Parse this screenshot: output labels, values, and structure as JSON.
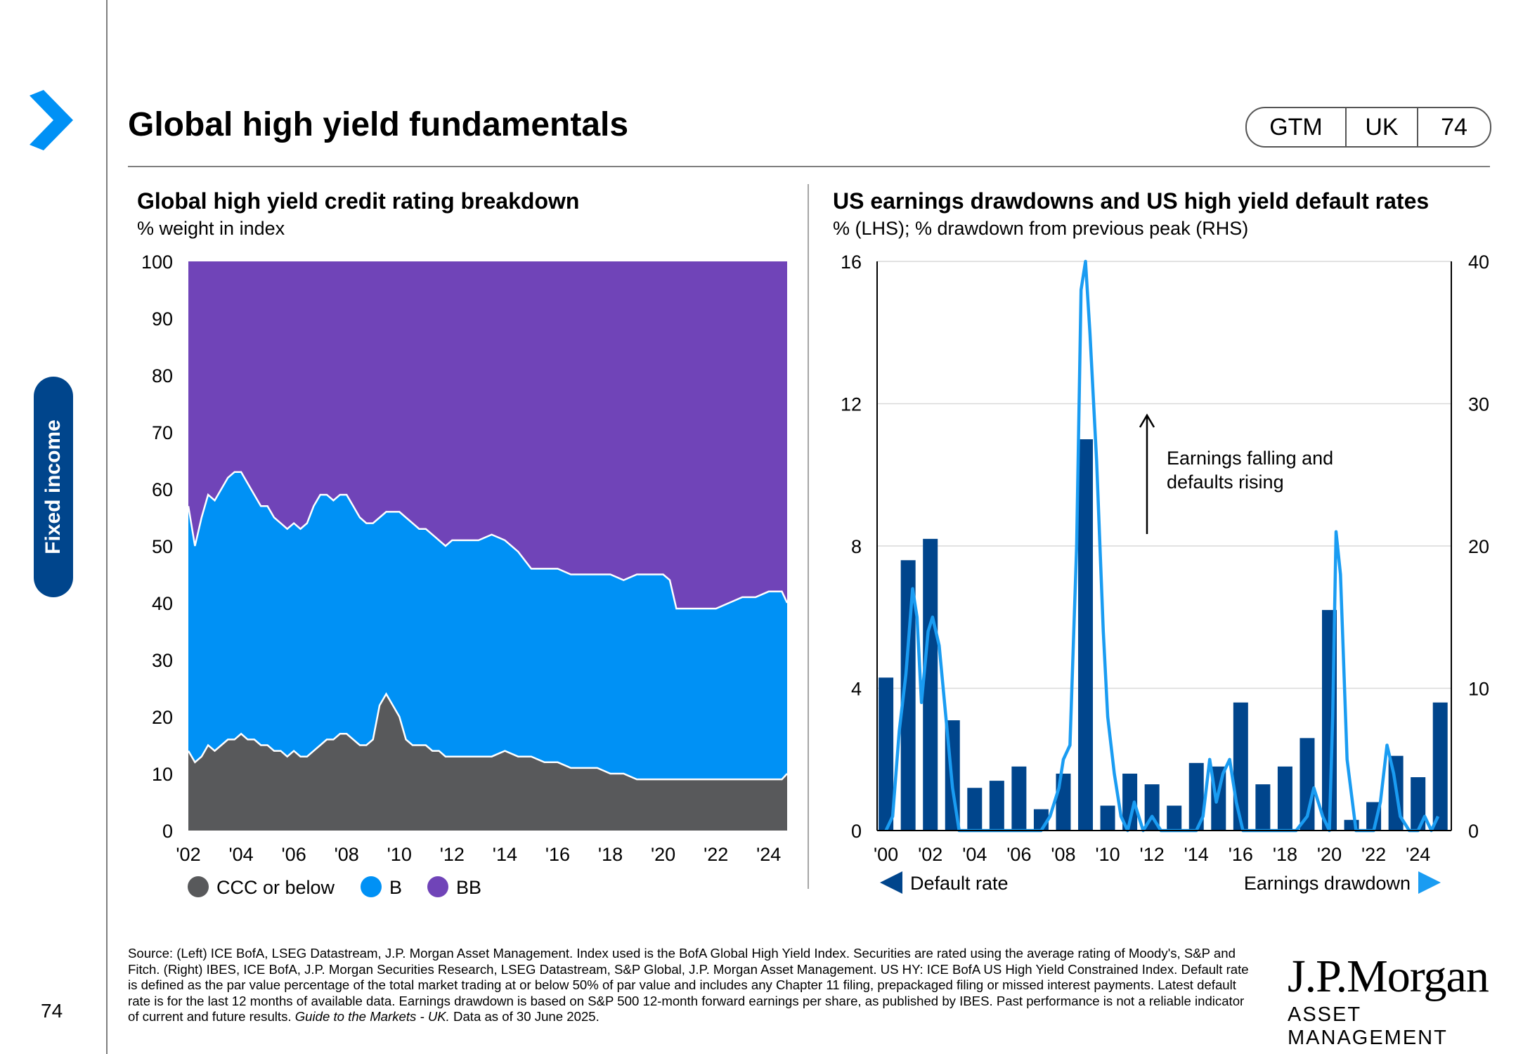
{
  "page": {
    "title": "Global high yield fundamentals",
    "badge": [
      "GTM",
      "UK",
      "74"
    ],
    "side_tab": "Fixed income",
    "page_number": "74",
    "footer": "Source: (Left) ICE BofA, LSEG Datastream, J.P. Morgan Asset Management. Index used is the BofA Global High Yield Index. Securities are rated using the average rating of Moody's, S&P and Fitch. (Right) IBES, ICE BofA, J.P. Morgan Securities Research, LSEG Datastream, S&P Global, J.P. Morgan Asset Management. US HY: ICE BofA US High Yield Constrained Index. Default rate is defined as the par value percentage of the total market trading at or below 50% of par value and includes any Chapter 11 filing, prepackaged filing or missed interest payments. Latest default rate is for the last 12 months of available data. Earnings drawdown is based on S&P 500 12-month forward earnings per share, as published by IBES. Past performance is not a reliable indicator of current and future results.",
    "footer_italic": "Guide to the Markets - UK.",
    "footer_end": "Data as of 30 June 2025.",
    "logo_line1": "J.P.Morgan",
    "logo_line2": "ASSET MANAGEMENT",
    "colors": {
      "navy": "#00458c",
      "ccc": "#58595b",
      "b": "#0091f5",
      "bb": "#7044b8",
      "bar": "#00458c",
      "line": "#1a9cf2"
    }
  },
  "chart_data": [
    {
      "type": "area",
      "title": "Global high yield credit rating breakdown",
      "subtitle": "% weight in index",
      "stacked": true,
      "x_ticks": [
        "'02",
        "'04",
        "'06",
        "'08",
        "'10",
        "'12",
        "'14",
        "'16",
        "'18",
        "'20",
        "'22",
        "'24"
      ],
      "ylim": [
        0,
        100
      ],
      "y_ticks": [
        0,
        10,
        20,
        30,
        40,
        50,
        60,
        70,
        80,
        90,
        100
      ],
      "x": [
        2002.0,
        2002.25,
        2002.5,
        2002.75,
        2003.0,
        2003.25,
        2003.5,
        2003.75,
        2004.0,
        2004.25,
        2004.5,
        2004.75,
        2005.0,
        2005.25,
        2005.5,
        2005.75,
        2006.0,
        2006.25,
        2006.5,
        2006.75,
        2007.0,
        2007.25,
        2007.5,
        2007.75,
        2008.0,
        2008.25,
        2008.5,
        2008.75,
        2009.0,
        2009.25,
        2009.5,
        2009.75,
        2010.0,
        2010.25,
        2010.5,
        2010.75,
        2011.0,
        2011.25,
        2011.5,
        2011.75,
        2012.0,
        2012.5,
        2013.0,
        2013.5,
        2014.0,
        2014.5,
        2015.0,
        2015.5,
        2016.0,
        2016.5,
        2017.0,
        2017.5,
        2018.0,
        2018.5,
        2019.0,
        2019.5,
        2020.0,
        2020.25,
        2020.5,
        2021.0,
        2021.5,
        2022.0,
        2022.5,
        2023.0,
        2023.5,
        2024.0,
        2024.5,
        2024.7
      ],
      "series": [
        {
          "name": "CCC or below",
          "values": [
            14,
            12,
            13,
            15,
            14,
            15,
            16,
            16,
            17,
            16,
            16,
            15,
            15,
            14,
            14,
            13,
            14,
            13,
            13,
            14,
            15,
            16,
            16,
            17,
            17,
            16,
            15,
            15,
            16,
            22,
            24,
            22,
            20,
            16,
            15,
            15,
            15,
            14,
            14,
            13,
            13,
            13,
            13,
            13,
            14,
            13,
            13,
            12,
            12,
            11,
            11,
            11,
            10,
            10,
            9,
            9,
            9,
            9,
            9,
            9,
            9,
            9,
            9,
            9,
            9,
            9,
            9,
            10
          ]
        },
        {
          "name": "B",
          "values": [
            43,
            38,
            42,
            44,
            44,
            45,
            46,
            47,
            46,
            45,
            43,
            42,
            42,
            41,
            40,
            40,
            40,
            40,
            41,
            43,
            44,
            43,
            42,
            42,
            42,
            41,
            40,
            39,
            38,
            33,
            32,
            34,
            36,
            39,
            39,
            38,
            38,
            38,
            37,
            37,
            38,
            38,
            38,
            39,
            37,
            36,
            33,
            34,
            34,
            34,
            34,
            34,
            35,
            34,
            36,
            36,
            36,
            35,
            30,
            30,
            30,
            30,
            31,
            32,
            32,
            33,
            33,
            30
          ]
        },
        {
          "name": "BB",
          "values": [
            43,
            50,
            45,
            41,
            42,
            40,
            38,
            37,
            37,
            39,
            41,
            43,
            43,
            45,
            46,
            47,
            46,
            47,
            46,
            43,
            41,
            41,
            42,
            41,
            41,
            43,
            45,
            46,
            46,
            45,
            44,
            44,
            44,
            45,
            46,
            47,
            47,
            48,
            49,
            50,
            49,
            49,
            49,
            48,
            49,
            51,
            54,
            54,
            54,
            55,
            55,
            55,
            55,
            56,
            55,
            55,
            55,
            56,
            61,
            61,
            61,
            61,
            60,
            59,
            59,
            58,
            58,
            60
          ]
        }
      ],
      "legend": [
        "CCC or below",
        "B",
        "BB"
      ]
    },
    {
      "type": "bar+line",
      "title": "US earnings drawdowns and US high yield default rates",
      "subtitle": "% (LHS); % drawdown from previous peak (RHS)",
      "x_ticks": [
        "'00",
        "'02",
        "'04",
        "'06",
        "'08",
        "'10",
        "'12",
        "'14",
        "'16",
        "'18",
        "'20",
        "'22",
        "'24"
      ],
      "ylim_left": [
        0,
        16
      ],
      "y_ticks_left": [
        0,
        4,
        8,
        12,
        16
      ],
      "ylim_right": [
        0,
        40
      ],
      "y_ticks_right": [
        0,
        10,
        20,
        30,
        40
      ],
      "bars": {
        "name": "Default rate",
        "x": [
          2000,
          2001,
          2002,
          2003,
          2004,
          2005,
          2006,
          2007,
          2008,
          2009,
          2010,
          2011,
          2012,
          2013,
          2014,
          2015,
          2016,
          2017,
          2018,
          2019,
          2020,
          2021,
          2022,
          2023,
          2024,
          2025
        ],
        "values": [
          4.3,
          7.6,
          8.2,
          3.1,
          1.2,
          1.4,
          1.8,
          0.6,
          1.6,
          11.0,
          0.7,
          1.6,
          1.3,
          0.7,
          1.9,
          1.8,
          3.6,
          1.3,
          1.8,
          2.6,
          6.2,
          0.3,
          0.8,
          2.1,
          1.5,
          3.6
        ]
      },
      "line": {
        "name": "Earnings drawdown",
        "x": [
          2000.0,
          2000.3,
          2000.6,
          2000.9,
          2001.2,
          2001.4,
          2001.6,
          2001.9,
          2002.1,
          2002.4,
          2002.7,
          2003.0,
          2003.3,
          2003.6,
          2003.9,
          2005.0,
          2006.0,
          2007.0,
          2007.4,
          2007.8,
          2008.0,
          2008.3,
          2008.6,
          2008.8,
          2009.0,
          2009.2,
          2009.5,
          2009.8,
          2010.0,
          2010.3,
          2010.6,
          2010.9,
          2011.2,
          2011.6,
          2012.0,
          2012.4,
          2012.8,
          2013.2,
          2013.6,
          2014.0,
          2014.3,
          2014.6,
          2014.9,
          2015.2,
          2015.5,
          2015.8,
          2016.1,
          2016.4,
          2016.8,
          2017.5,
          2018.5,
          2019.0,
          2019.3,
          2019.7,
          2020.0,
          2020.15,
          2020.3,
          2020.5,
          2020.8,
          2021.2,
          2022.0,
          2022.3,
          2022.6,
          2022.9,
          2023.2,
          2023.6,
          2024.0,
          2024.3,
          2024.6,
          2024.9
        ],
        "values": [
          0,
          1,
          7,
          11,
          17,
          15,
          9,
          14,
          15,
          13,
          8,
          3,
          0,
          0,
          0,
          0,
          0,
          0,
          1,
          3,
          5,
          6,
          20,
          38,
          40,
          35,
          26,
          14,
          8,
          4,
          1,
          0,
          2,
          0,
          1,
          0,
          0,
          0,
          0,
          0,
          1,
          5,
          2,
          4,
          5,
          2,
          0,
          0,
          0,
          0,
          0,
          1,
          3,
          1,
          0,
          8,
          21,
          18,
          5,
          0,
          0,
          2,
          6,
          4,
          1,
          0,
          0,
          1,
          0,
          1
        ]
      },
      "annotation": "Earnings falling and defaults rising",
      "legend": [
        "Default rate",
        "Earnings drawdown"
      ]
    }
  ]
}
